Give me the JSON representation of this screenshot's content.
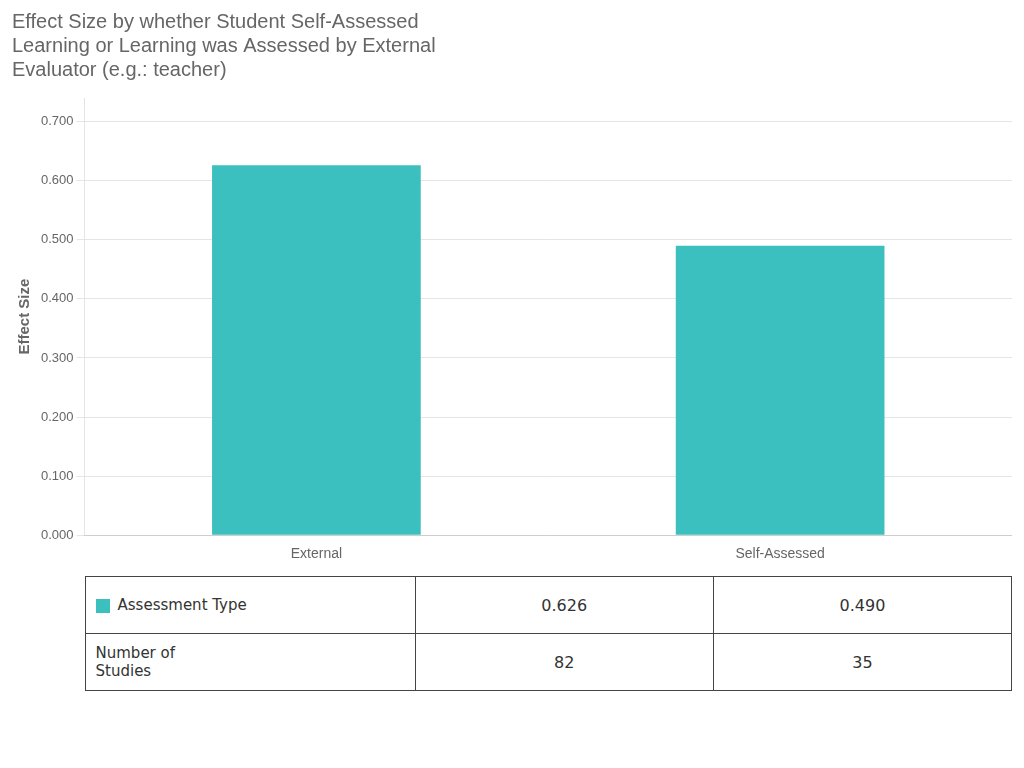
{
  "chart_data": {
    "type": "bar",
    "title": "Effect Size by whether Student Self-Assessed\nLearning or Learning was Assessed by External\nEvaluator (e.g.: teacher)",
    "categories": [
      "External",
      "Self-Assessed"
    ],
    "values": [
      0.626,
      0.49
    ],
    "color": "#3CBFBF",
    "ylabel": "Effect Size",
    "ylim": [
      0,
      0.74
    ],
    "yticks": [
      {
        "value": 0,
        "label": "0.000"
      },
      {
        "value": 0.1,
        "label": "0.100"
      },
      {
        "value": 0.2,
        "label": "0.200"
      },
      {
        "value": 0.3,
        "label": "0.300"
      },
      {
        "value": 0.4,
        "label": "0.400"
      },
      {
        "value": 0.5,
        "label": "0.500"
      },
      {
        "value": 0.6,
        "label": "0.600"
      },
      {
        "value": 0.7,
        "label": "0.700"
      }
    ],
    "grid": true,
    "table": [
      {
        "label": "Assessment Type",
        "values": [
          "0.626",
          "0.490"
        ]
      },
      {
        "label": "Number of\nStudies",
        "values": [
          82,
          35
        ]
      }
    ]
  }
}
